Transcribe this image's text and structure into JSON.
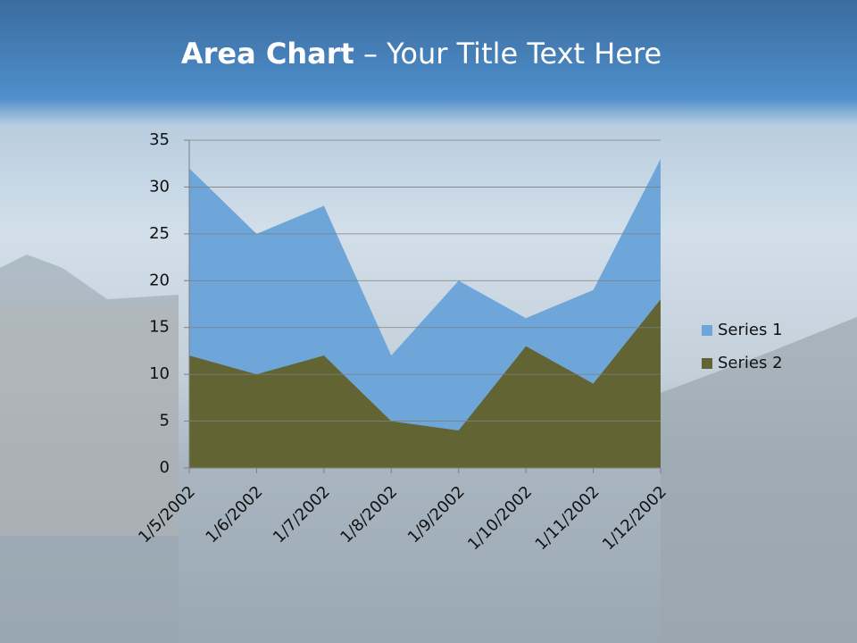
{
  "chart_data": {
    "type": "area",
    "title": {
      "bold": "Area Chart",
      "rest": " – Your Title Text Here"
    },
    "categories": [
      "1/5/2002",
      "1/6/2002",
      "1/7/2002",
      "1/8/2002",
      "1/9/2002",
      "1/10/2002",
      "1/11/2002",
      "1/12/2002"
    ],
    "series": [
      {
        "name": "Series 1",
        "color": "#6ea6d9",
        "values": [
          32,
          25,
          28,
          12,
          20,
          16,
          19,
          33
        ]
      },
      {
        "name": "Series 2",
        "color": "#636433",
        "values": [
          12,
          10,
          12,
          5,
          4,
          13,
          9,
          18
        ]
      }
    ],
    "ylim": [
      0,
      35
    ],
    "yticks": [
      0,
      5,
      10,
      15,
      20,
      25,
      30,
      35
    ],
    "grid": true,
    "legend": "right"
  }
}
